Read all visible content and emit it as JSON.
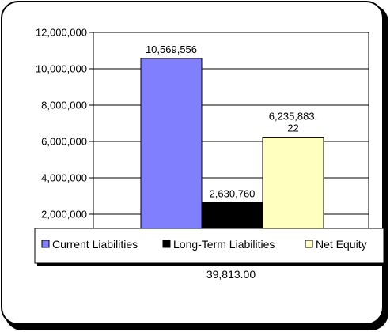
{
  "chart_data": {
    "type": "bar",
    "categories": [
      "39,813.00"
    ],
    "series": [
      {
        "name": "Current Liabilities",
        "values": [
          10569556
        ],
        "label": "10,569,556",
        "color": "#8080ff"
      },
      {
        "name": "Long-Term Liabilities",
        "values": [
          2630760
        ],
        "label": "2,630,760",
        "color": "#000000"
      },
      {
        "name": "Net Equity",
        "values": [
          6235883.22
        ],
        "label": "6,235,883.\n22",
        "color": "#ffffc0"
      }
    ],
    "y_ticks": [
      "2,000,000",
      "4,000,000",
      "6,000,000",
      "8,000,000",
      "10,000,000",
      "12,000,000"
    ],
    "ylim": [
      0,
      12000000
    ],
    "grid": true,
    "legend_position": "bottom",
    "title": "",
    "xlabel": "",
    "ylabel": ""
  }
}
